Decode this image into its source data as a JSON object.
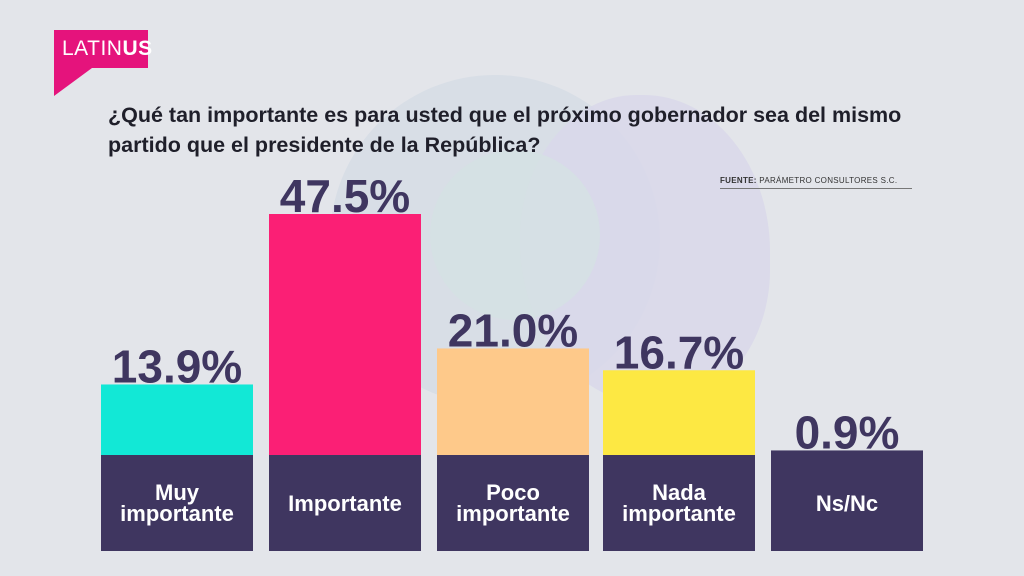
{
  "logo": {
    "text_light": "LATIN",
    "text_bold": "US"
  },
  "question": "¿Qué tan importante es para usted que el próximo gobernador sea del mismo partido que el presidente de la República?",
  "source": {
    "label": "FUENTE:",
    "text": "PARÁMETRO CONSULTORES S.C."
  },
  "colors": {
    "brand": "#e5137c",
    "label_bar": "#3f3660",
    "value_text": "#3f3660"
  },
  "chart_data": {
    "type": "bar",
    "categories": [
      "Muy importante",
      "Importante",
      "Poco importante",
      "Nada importante",
      "Ns/Nc"
    ],
    "values": [
      13.9,
      47.5,
      21.0,
      16.7,
      0.9
    ],
    "value_labels": [
      "13.9%",
      "47.5%",
      "21.0%",
      "16.7%",
      "0.9%"
    ],
    "colors": [
      "#12e8d6",
      "#fb1f75",
      "#fec98a",
      "#fde843",
      "#3f3660"
    ],
    "title": "¿Qué tan importante es para usted que el próximo gobernador sea del mismo partido que el presidente de la República?",
    "xlabel": "",
    "ylabel": "",
    "ylim": [
      0,
      47.5
    ],
    "grid": false,
    "legend": "none"
  }
}
